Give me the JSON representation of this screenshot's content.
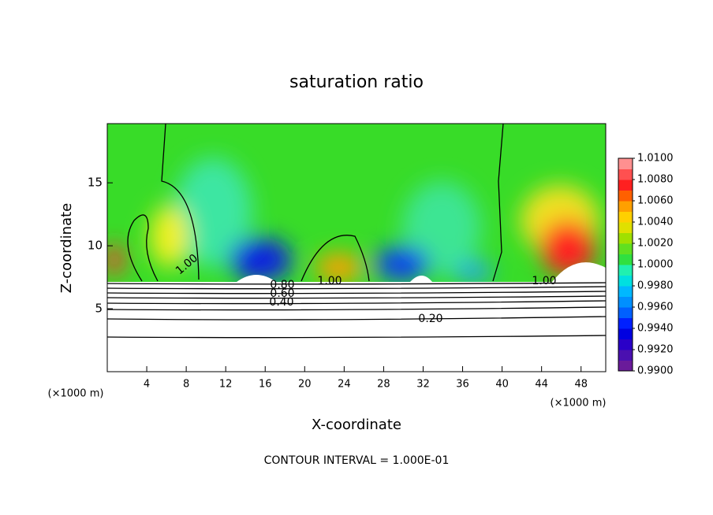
{
  "chart_data": {
    "type": "contour",
    "title": "saturation ratio",
    "xlabel": "X-coordinate",
    "ylabel": "Z-coordinate",
    "x_unit_labels": [
      "(×1000 m)",
      "(×1000 m)"
    ],
    "note": "CONTOUR INTERVAL = 1.000E-01",
    "xlim": [
      0,
      50.5
    ],
    "xticks": [
      4,
      8,
      12,
      16,
      20,
      24,
      28,
      32,
      36,
      40,
      44,
      48
    ],
    "ylim": [
      0,
      19.7
    ],
    "yticks": [
      5,
      10,
      15
    ],
    "colorbar": {
      "lim": [
        0.99,
        1.01
      ],
      "ticks": [
        {
          "value": 1.01,
          "label": "1.0100"
        },
        {
          "value": 1.008,
          "label": "1.0080"
        },
        {
          "value": 1.006,
          "label": "1.0060"
        },
        {
          "value": 1.004,
          "label": "1.0040"
        },
        {
          "value": 1.002,
          "label": "1.0020"
        },
        {
          "value": 1.0,
          "label": "1.0000"
        },
        {
          "value": 0.998,
          "label": "0.9980"
        },
        {
          "value": 0.996,
          "label": "0.9960"
        },
        {
          "value": 0.994,
          "label": "0.9940"
        },
        {
          "value": 0.992,
          "label": "0.9920"
        },
        {
          "value": 0.99,
          "label": "0.9900"
        }
      ],
      "colors": [
        "#6a1b9a",
        "#4a10b0",
        "#2a00c8",
        "#0000e0",
        "#0020ff",
        "#0060ff",
        "#0090ff",
        "#00b8ff",
        "#00e0e0",
        "#20f0b0",
        "#30e040",
        "#60e020",
        "#a0e000",
        "#e0e000",
        "#ffd000",
        "#ffa000",
        "#ff6000",
        "#ff2020",
        "#ff5050",
        "#ff9090"
      ]
    },
    "contour_labels": [
      {
        "value": 1.0,
        "label": "1.00"
      },
      {
        "value": 0.8,
        "label": "0.80"
      },
      {
        "value": 1.0,
        "label": "1.00"
      },
      {
        "value": 0.6,
        "label": "0.60"
      },
      {
        "value": 0.4,
        "label": "0.40"
      },
      {
        "value": 0.2,
        "label": "0.20"
      },
      {
        "value": 1.0,
        "label": "1.00"
      }
    ]
  }
}
